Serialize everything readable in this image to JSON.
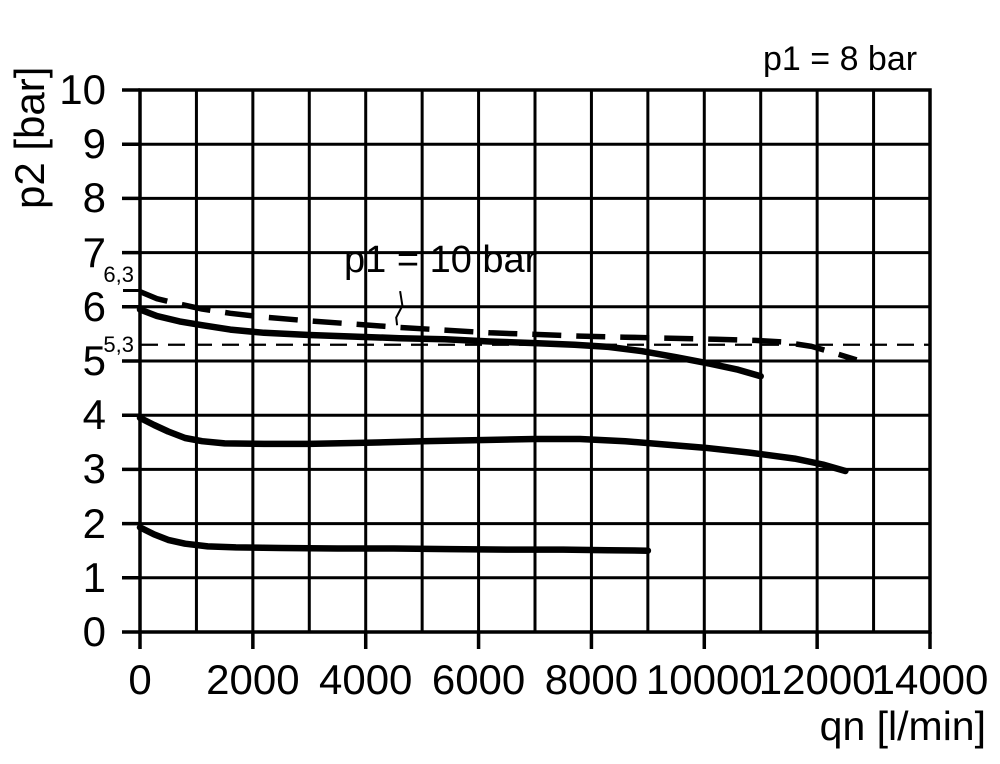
{
  "meta": {
    "background": "#ffffff",
    "ink": "#000000"
  },
  "chart_data": {
    "type": "line",
    "title": "p1 = 8 bar",
    "xlabel": "qn [l/min]",
    "ylabel": "p2 [bar]",
    "xlim": [
      0,
      14000
    ],
    "ylim": [
      0,
      10
    ],
    "grid": {
      "x_step": 1000,
      "y_step": 1,
      "on": true
    },
    "x_ticks": [
      {
        "value": 0,
        "label": "0"
      },
      {
        "value": 2000,
        "label": "2000"
      },
      {
        "value": 4000,
        "label": "4000"
      },
      {
        "value": 6000,
        "label": "6000"
      },
      {
        "value": 8000,
        "label": "8000"
      },
      {
        "value": 10000,
        "label": "10000"
      },
      {
        "value": 12000,
        "label": "12000"
      },
      {
        "value": 14000,
        "label": "14000"
      }
    ],
    "y_ticks": [
      {
        "value": 0,
        "label": "0"
      },
      {
        "value": 1,
        "label": "1"
      },
      {
        "value": 2,
        "label": "2"
      },
      {
        "value": 3,
        "label": "3"
      },
      {
        "value": 4,
        "label": "4"
      },
      {
        "value": 5,
        "label": "5"
      },
      {
        "value": 6,
        "label": "6"
      },
      {
        "value": 7,
        "label": "7"
      },
      {
        "value": 8,
        "label": "8"
      },
      {
        "value": 9,
        "label": "9"
      },
      {
        "value": 10,
        "label": "10"
      }
    ],
    "extra_y_marks": [
      {
        "value": 6.3,
        "label": "6,3",
        "tick": true
      },
      {
        "value": 5.3,
        "label": "5,3",
        "tick": false
      }
    ],
    "reference_line": {
      "name": "p2-5.3-reference",
      "y": 5.3,
      "x_start": 0,
      "x_end": 14000
    },
    "annotation": {
      "label": "p1 = 10 bar",
      "leader": [
        [
          4610,
          6.29
        ],
        [
          4650,
          6.02
        ],
        [
          4540,
          5.8
        ],
        [
          4556,
          5.66
        ]
      ]
    },
    "series": [
      {
        "name": "p1-10bar-dashed-curve",
        "legend": "p1 = 10 bar",
        "style": "dashed-thick",
        "points": [
          [
            0,
            6.28
          ],
          [
            300,
            6.15
          ],
          [
            700,
            6.05
          ],
          [
            1100,
            5.96
          ],
          [
            1600,
            5.88
          ],
          [
            2200,
            5.81
          ],
          [
            3000,
            5.74
          ],
          [
            3800,
            5.68
          ],
          [
            4600,
            5.62
          ],
          [
            5400,
            5.57
          ],
          [
            6200,
            5.52
          ],
          [
            7000,
            5.49
          ],
          [
            7800,
            5.46
          ],
          [
            8600,
            5.44
          ],
          [
            9400,
            5.42
          ],
          [
            10200,
            5.4
          ],
          [
            10900,
            5.38
          ],
          [
            11400,
            5.35
          ],
          [
            11900,
            5.27
          ],
          [
            12300,
            5.15
          ],
          [
            12700,
            5.02
          ]
        ]
      },
      {
        "name": "p1-8bar-upper-curve",
        "style": "solid-thick",
        "points": [
          [
            0,
            5.95
          ],
          [
            300,
            5.83
          ],
          [
            700,
            5.73
          ],
          [
            1100,
            5.66
          ],
          [
            1600,
            5.58
          ],
          [
            2200,
            5.52
          ],
          [
            3000,
            5.48
          ],
          [
            3800,
            5.45
          ],
          [
            4600,
            5.42
          ],
          [
            5400,
            5.4
          ],
          [
            6200,
            5.36
          ],
          [
            7000,
            5.33
          ],
          [
            7700,
            5.3
          ],
          [
            8300,
            5.26
          ],
          [
            8900,
            5.18
          ],
          [
            9500,
            5.07
          ],
          [
            10100,
            4.95
          ],
          [
            10600,
            4.84
          ],
          [
            11000,
            4.72
          ]
        ]
      },
      {
        "name": "p1-8bar-middle-curve",
        "style": "solid-thick",
        "points": [
          [
            0,
            3.95
          ],
          [
            250,
            3.82
          ],
          [
            500,
            3.7
          ],
          [
            800,
            3.58
          ],
          [
            1100,
            3.52
          ],
          [
            1500,
            3.48
          ],
          [
            2200,
            3.47
          ],
          [
            3000,
            3.47
          ],
          [
            4000,
            3.49
          ],
          [
            5000,
            3.52
          ],
          [
            6000,
            3.54
          ],
          [
            7000,
            3.56
          ],
          [
            7800,
            3.56
          ],
          [
            8600,
            3.52
          ],
          [
            9300,
            3.46
          ],
          [
            10000,
            3.4
          ],
          [
            10800,
            3.31
          ],
          [
            11600,
            3.2
          ],
          [
            12100,
            3.09
          ],
          [
            12500,
            2.97
          ]
        ]
      },
      {
        "name": "p1-8bar-lower-curve",
        "style": "solid-thick",
        "points": [
          [
            0,
            1.93
          ],
          [
            250,
            1.8
          ],
          [
            500,
            1.7
          ],
          [
            800,
            1.63
          ],
          [
            1200,
            1.58
          ],
          [
            1700,
            1.56
          ],
          [
            2500,
            1.55
          ],
          [
            3500,
            1.54
          ],
          [
            4500,
            1.54
          ],
          [
            5500,
            1.53
          ],
          [
            6500,
            1.52
          ],
          [
            7500,
            1.52
          ],
          [
            8300,
            1.51
          ],
          [
            9000,
            1.5
          ]
        ]
      }
    ]
  }
}
